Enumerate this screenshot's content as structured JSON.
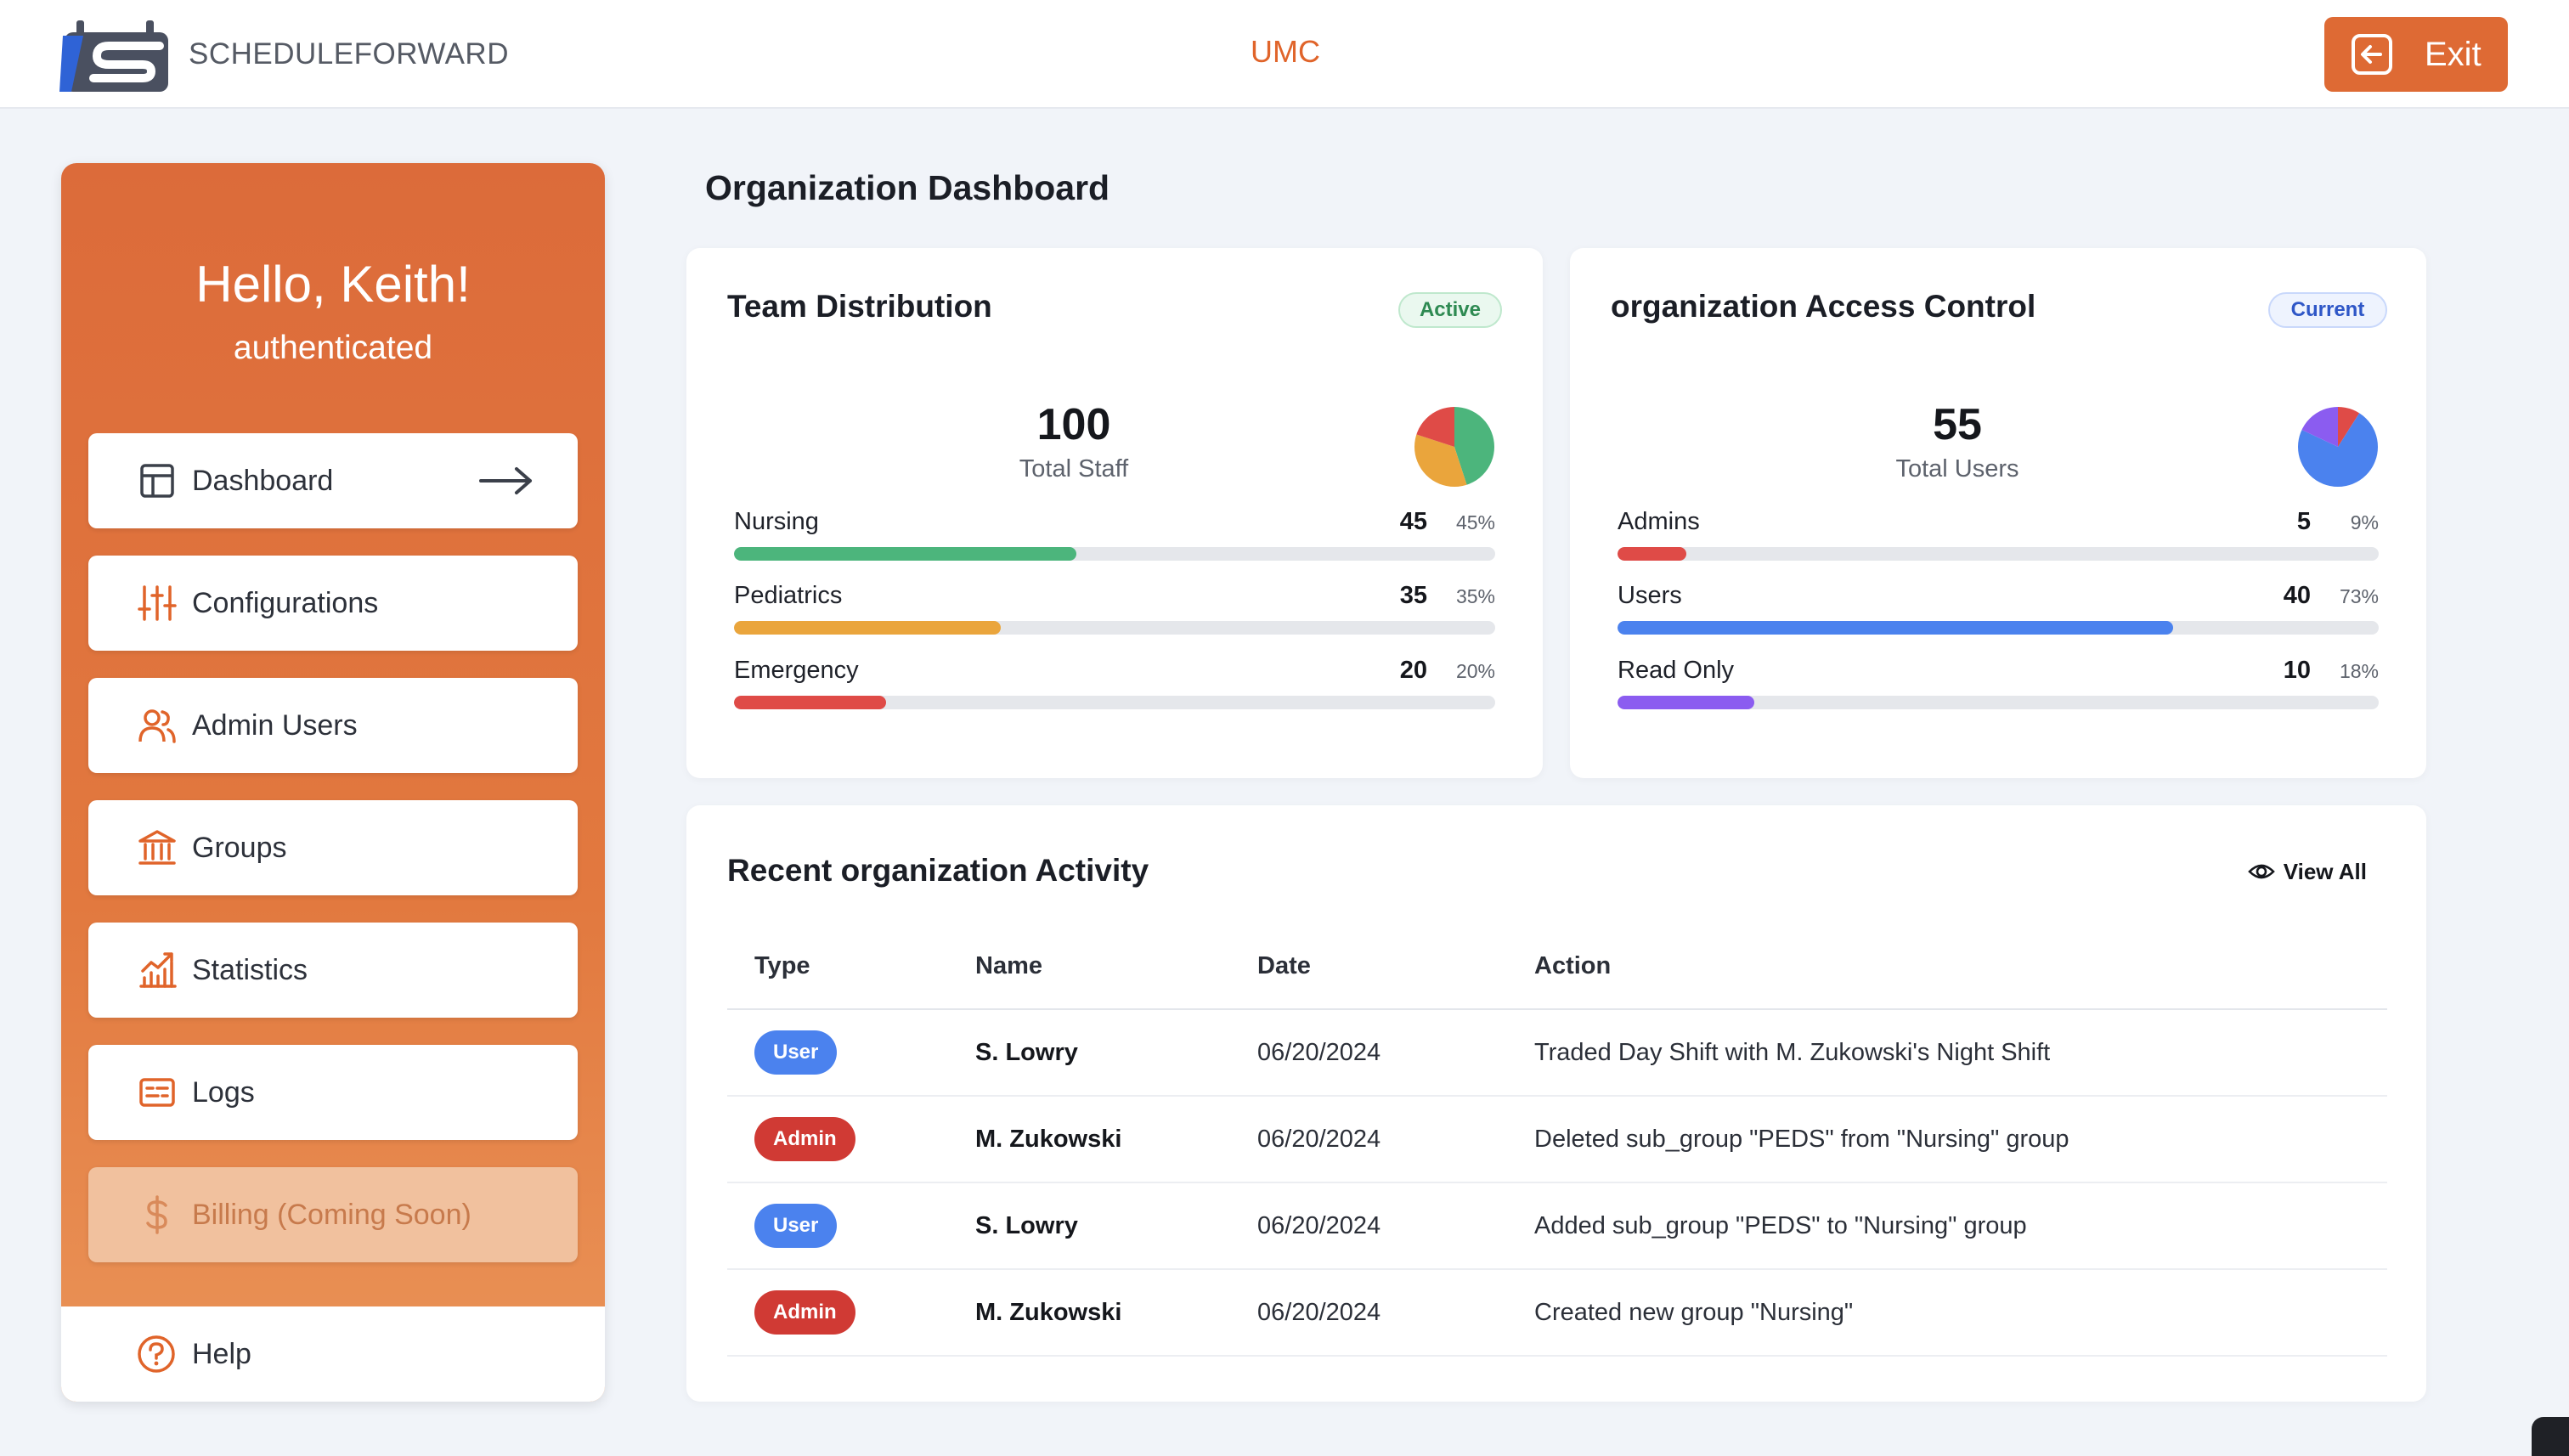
{
  "header": {
    "logo_text": "SCHEDULEFORWARD",
    "org_name": "UMC",
    "exit_label": "Exit"
  },
  "sidebar": {
    "greeting": "Hello, Keith!",
    "status": "authenticated",
    "items": [
      {
        "label": "Dashboard",
        "icon": "layout-icon"
      },
      {
        "label": "Configurations",
        "icon": "sliders-icon"
      },
      {
        "label": "Admin Users",
        "icon": "users-icon"
      },
      {
        "label": "Groups",
        "icon": "bank-icon"
      },
      {
        "label": "Statistics",
        "icon": "chart-icon"
      },
      {
        "label": "Logs",
        "icon": "logs-icon"
      },
      {
        "label": "Billing (Coming Soon)",
        "icon": "dollar-icon"
      }
    ],
    "help_label": "Help"
  },
  "main": {
    "title": "Organization Dashboard",
    "team_distribution": {
      "title": "Team Distribution",
      "badge": "Active",
      "total": "100",
      "total_label": "Total Staff",
      "rows": [
        {
          "label": "Nursing",
          "value": "45",
          "pct": "45%",
          "fraction": 0.45,
          "color": "#4cb57c"
        },
        {
          "label": "Pediatrics",
          "value": "35",
          "pct": "35%",
          "fraction": 0.35,
          "color": "#eaa53c"
        },
        {
          "label": "Emergency",
          "value": "20",
          "pct": "20%",
          "fraction": 0.2,
          "color": "#df4b47"
        }
      ]
    },
    "access_control": {
      "title": "organization Access Control",
      "badge": "Current",
      "total": "55",
      "total_label": "Total Users",
      "rows": [
        {
          "label": "Admins",
          "value": "5",
          "pct": "9%",
          "fraction": 0.09,
          "color": "#df4b47"
        },
        {
          "label": "Users",
          "value": "40",
          "pct": "73%",
          "fraction": 0.73,
          "color": "#4b82ee"
        },
        {
          "label": "Read Only",
          "value": "10",
          "pct": "18%",
          "fraction": 0.18,
          "color": "#8b5cf0"
        }
      ]
    },
    "activity": {
      "title": "Recent organization Activity",
      "view_all": "View All",
      "columns": [
        "Type",
        "Name",
        "Date",
        "Action"
      ],
      "rows": [
        {
          "type": "User",
          "name": "S. Lowry",
          "date": "06/20/2024",
          "action": "Traded Day Shift with M. Zukowski's Night Shift"
        },
        {
          "type": "Admin",
          "name": "M. Zukowski",
          "date": "06/20/2024",
          "action": "Deleted sub_group \"PEDS\" from \"Nursing\" group"
        },
        {
          "type": "User",
          "name": "S. Lowry",
          "date": "06/20/2024",
          "action": "Added sub_group \"PEDS\" to \"Nursing\" group"
        },
        {
          "type": "Admin",
          "name": "M. Zukowski",
          "date": "06/20/2024",
          "action": "Created new group \"Nursing\""
        }
      ]
    }
  },
  "colors": {
    "accent": "#de6a34",
    "user_badge": "#4b82ee",
    "admin_badge": "#d03a34"
  }
}
